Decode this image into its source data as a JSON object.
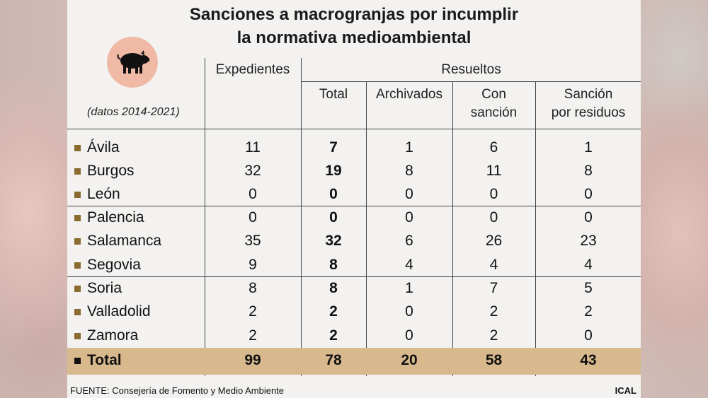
{
  "title_line1": "Sanciones a macrogranjas por incumplir",
  "title_line2": "la normativa medioambiental",
  "period": "(datos 2014-2021)",
  "headers": {
    "expedientes": "Expedientes",
    "resueltos": "Resueltos",
    "total": "Total",
    "archivados": "Archivados",
    "con_sancion_1": "Con",
    "con_sancion_2": "sanción",
    "residuos_1": "Sanción",
    "residuos_2": "por residuos"
  },
  "source": "FUENTE: Consejería de Fomento y Medio Ambiente",
  "credit": "ICAL",
  "colors": {
    "bullet": "#8a6a2e",
    "total_row": "#d7b98d",
    "pig_circle": "#f0b9a6"
  },
  "icons": [
    "pig-icon"
  ],
  "chart_data": {
    "type": "table",
    "title": "Sanciones a macrogranjas por incumplir la normativa medioambiental",
    "columns": [
      "Expedientes",
      "Total",
      "Archivados",
      "Con sanción",
      "Sanción por residuos"
    ],
    "rows": [
      {
        "name": "Ávila",
        "values": [
          "11",
          "7",
          "1",
          "6",
          "1"
        ]
      },
      {
        "name": "Burgos",
        "values": [
          "32",
          "19",
          "8",
          "11",
          "8"
        ]
      },
      {
        "name": "León",
        "values": [
          "0",
          "0",
          "0",
          "0",
          "0"
        ]
      },
      {
        "name": "Palencia",
        "values": [
          "0",
          "0",
          "0",
          "0",
          "0"
        ]
      },
      {
        "name": "Salamanca",
        "values": [
          "35",
          "32",
          "6",
          "26",
          "23"
        ]
      },
      {
        "name": "Segovia",
        "values": [
          "9",
          "8",
          "4",
          "4",
          "4"
        ]
      },
      {
        "name": "Soria",
        "values": [
          "8",
          "8",
          "1",
          "7",
          "5"
        ]
      },
      {
        "name": "Valladolid",
        "values": [
          "2",
          "2",
          "0",
          "2",
          "2"
        ]
      },
      {
        "name": "Zamora",
        "values": [
          "2",
          "2",
          "0",
          "2",
          "0"
        ]
      }
    ],
    "total": {
      "name": "Total",
      "values": [
        "99",
        "78",
        "20",
        "58",
        "43"
      ]
    }
  }
}
